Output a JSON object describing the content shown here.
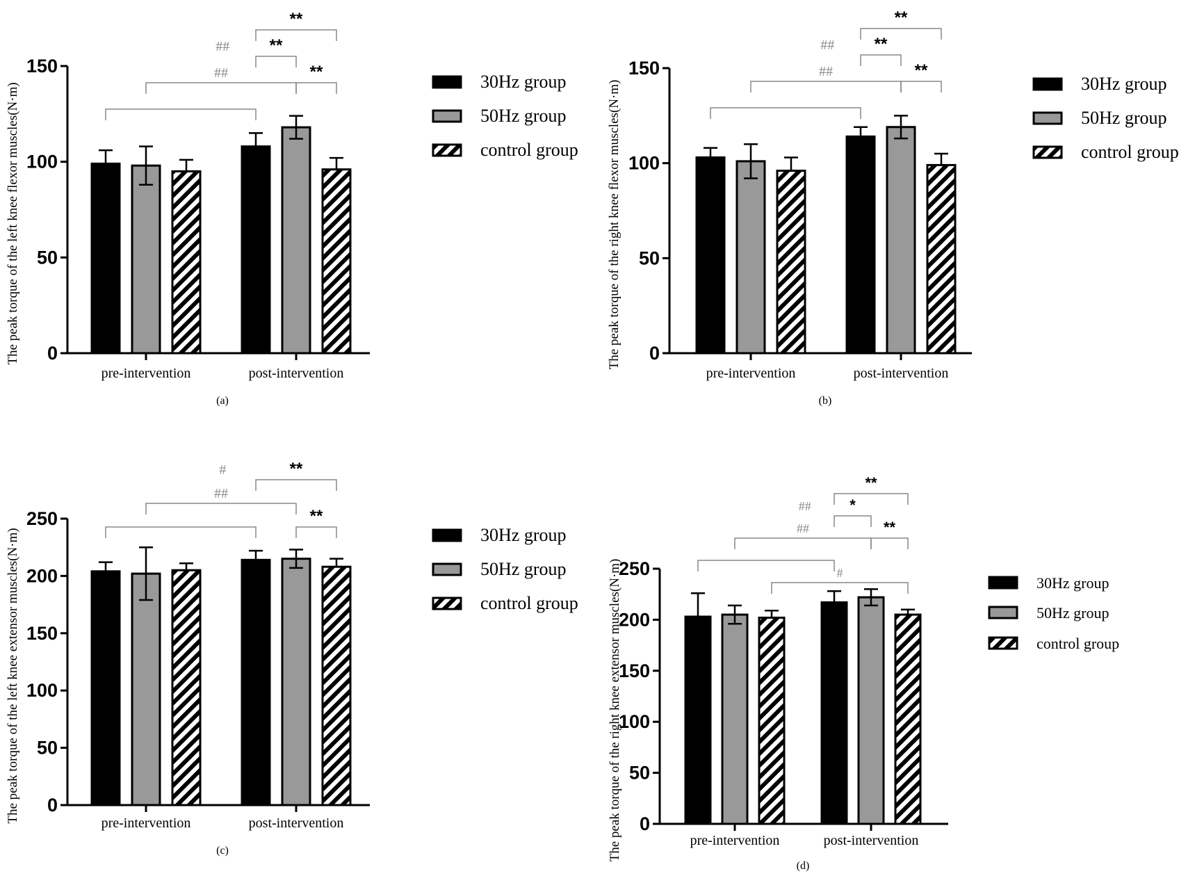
{
  "figure": {
    "patterns": {
      "hatch_id": "hatch"
    },
    "colors": {
      "series_30hz": "#000000",
      "series_50hz": "#999999",
      "series_control_stripe": "#000000",
      "series_control_bg": "#ffffff",
      "axis": "#000000",
      "bracket_hash": "#888888",
      "bracket_star": "#888888",
      "hash_text": "#888888",
      "star_text": "#000000"
    }
  },
  "chart_data": [
    {
      "id": "a",
      "type": "bar",
      "caption": "(a)",
      "ylabel": "The peak torque of the left knee flexor muscles(N·m)",
      "ylim": [
        0,
        150
      ],
      "yticks": [
        0,
        50,
        100,
        150
      ],
      "categories": [
        "pre-intervention",
        "post-intervention"
      ],
      "legend": [
        "30Hz group",
        "50Hz group",
        "control group"
      ],
      "series": [
        {
          "name": "30Hz group",
          "values": [
            99,
            108
          ],
          "errors": [
            7,
            7
          ]
        },
        {
          "name": "50Hz group",
          "values": [
            98,
            118
          ],
          "errors": [
            10,
            6
          ]
        },
        {
          "name": "control group",
          "values": [
            95,
            96
          ],
          "errors": [
            6,
            6
          ]
        }
      ],
      "brackets": [
        {
          "from": [
            0,
            0
          ],
          "to": [
            1,
            0
          ],
          "label": "",
          "level": 1,
          "kind": "hash"
        },
        {
          "from": [
            0,
            1
          ],
          "to": [
            1,
            1
          ],
          "label": "##",
          "level": 2,
          "kind": "hash"
        },
        {
          "from": [
            1,
            1
          ],
          "to": [
            1,
            2
          ],
          "label": "**",
          "level": 2,
          "kind": "star"
        },
        {
          "from": [
            1,
            0
          ],
          "to": [
            1,
            1
          ],
          "label": "**",
          "level": 3,
          "kind": "star"
        },
        {
          "from": [
            1,
            0
          ],
          "to": [
            1,
            2
          ],
          "label": "**",
          "level": 4,
          "kind": "star"
        }
      ],
      "floating_labels": [
        {
          "text": "##",
          "near": [
            0,
            2
          ],
          "level": 3,
          "kind": "hash"
        }
      ]
    },
    {
      "id": "b",
      "type": "bar",
      "caption": "(b)",
      "ylabel": "The peak torque of the right knee flexor muscles(N·m)",
      "ylim": [
        0,
        150
      ],
      "yticks": [
        0,
        50,
        100,
        150
      ],
      "categories": [
        "pre-intervention",
        "post-intervention"
      ],
      "legend": [
        "30Hz group",
        "50Hz group",
        "control group"
      ],
      "series": [
        {
          "name": "30Hz group",
          "values": [
            103,
            114
          ],
          "errors": [
            5,
            5
          ]
        },
        {
          "name": "50Hz group",
          "values": [
            101,
            119
          ],
          "errors": [
            9,
            6
          ]
        },
        {
          "name": "control group",
          "values": [
            96,
            99
          ],
          "errors": [
            7,
            6
          ]
        }
      ],
      "brackets": [
        {
          "from": [
            0,
            0
          ],
          "to": [
            1,
            0
          ],
          "label": "",
          "level": 1,
          "kind": "hash"
        },
        {
          "from": [
            0,
            1
          ],
          "to": [
            1,
            1
          ],
          "label": "##",
          "level": 2,
          "kind": "hash"
        },
        {
          "from": [
            1,
            1
          ],
          "to": [
            1,
            2
          ],
          "label": "**",
          "level": 2,
          "kind": "star"
        },
        {
          "from": [
            1,
            0
          ],
          "to": [
            1,
            1
          ],
          "label": "**",
          "level": 3,
          "kind": "star"
        },
        {
          "from": [
            1,
            0
          ],
          "to": [
            1,
            2
          ],
          "label": "**",
          "level": 4,
          "kind": "star"
        }
      ],
      "floating_labels": [
        {
          "text": "##",
          "near": [
            0,
            2
          ],
          "level": 3,
          "kind": "hash"
        }
      ]
    },
    {
      "id": "c",
      "type": "bar",
      "caption": "(c)",
      "ylabel": "The peak torque of the left knee extensor muscles(N·m)",
      "ylim": [
        0,
        250
      ],
      "yticks": [
        0,
        50,
        100,
        150,
        200,
        250
      ],
      "categories": [
        "pre-intervention",
        "post-intervention"
      ],
      "legend": [
        "30Hz group",
        "50Hz group",
        "control group"
      ],
      "series": [
        {
          "name": "30Hz group",
          "values": [
            204,
            214
          ],
          "errors": [
            8,
            8
          ]
        },
        {
          "name": "50Hz group",
          "values": [
            202,
            215
          ],
          "errors": [
            23,
            8
          ]
        },
        {
          "name": "control group",
          "values": [
            205,
            208
          ],
          "errors": [
            6,
            7
          ]
        }
      ],
      "brackets": [
        {
          "from": [
            0,
            0
          ],
          "to": [
            1,
            0
          ],
          "label": "",
          "level": 1,
          "kind": "hash"
        },
        {
          "from": [
            0,
            1
          ],
          "to": [
            1,
            1
          ],
          "label": "##",
          "level": 2,
          "kind": "hash"
        },
        {
          "from": [
            1,
            1
          ],
          "to": [
            1,
            2
          ],
          "label": "**",
          "level": 1,
          "kind": "star"
        },
        {
          "from": [
            1,
            0
          ],
          "to": [
            1,
            2
          ],
          "label": "**",
          "level": 3,
          "kind": "star"
        }
      ],
      "floating_labels": [
        {
          "text": "#",
          "near": [
            0,
            2
          ],
          "level": 3,
          "kind": "hash"
        }
      ]
    },
    {
      "id": "d",
      "type": "bar",
      "caption": "(d)",
      "ylabel": "The peak torque of the right knee extensor muscles(N·m)",
      "ylim": [
        0,
        250
      ],
      "yticks": [
        0,
        50,
        100,
        150,
        200,
        250
      ],
      "categories": [
        "pre-intervention",
        "post-intervention"
      ],
      "legend": [
        "30Hz group",
        "50Hz group",
        "control group"
      ],
      "series": [
        {
          "name": "30Hz group",
          "values": [
            203,
            217
          ],
          "errors": [
            23,
            11
          ]
        },
        {
          "name": "50Hz group",
          "values": [
            205,
            222
          ],
          "errors": [
            9,
            8
          ]
        },
        {
          "name": "control group",
          "values": [
            202,
            205
          ],
          "errors": [
            7,
            5
          ]
        }
      ],
      "brackets": [
        {
          "from": [
            0,
            2
          ],
          "to": [
            1,
            2
          ],
          "label": "#",
          "level": 1,
          "kind": "hash"
        },
        {
          "from": [
            0,
            0
          ],
          "to": [
            1,
            0
          ],
          "label": "",
          "level": 2,
          "kind": "hash"
        },
        {
          "from": [
            0,
            1
          ],
          "to": [
            1,
            1
          ],
          "label": "##",
          "level": 3,
          "kind": "hash"
        },
        {
          "from": [
            1,
            1
          ],
          "to": [
            1,
            2
          ],
          "label": "**",
          "level": 3,
          "kind": "star"
        },
        {
          "from": [
            1,
            0
          ],
          "to": [
            1,
            1
          ],
          "label": "*",
          "level": 4,
          "kind": "star"
        },
        {
          "from": [
            1,
            0
          ],
          "to": [
            1,
            2
          ],
          "label": "**",
          "level": 5,
          "kind": "star"
        }
      ],
      "floating_labels": [
        {
          "text": "##",
          "near": [
            0,
            2
          ],
          "level": 4,
          "kind": "hash"
        }
      ]
    }
  ]
}
